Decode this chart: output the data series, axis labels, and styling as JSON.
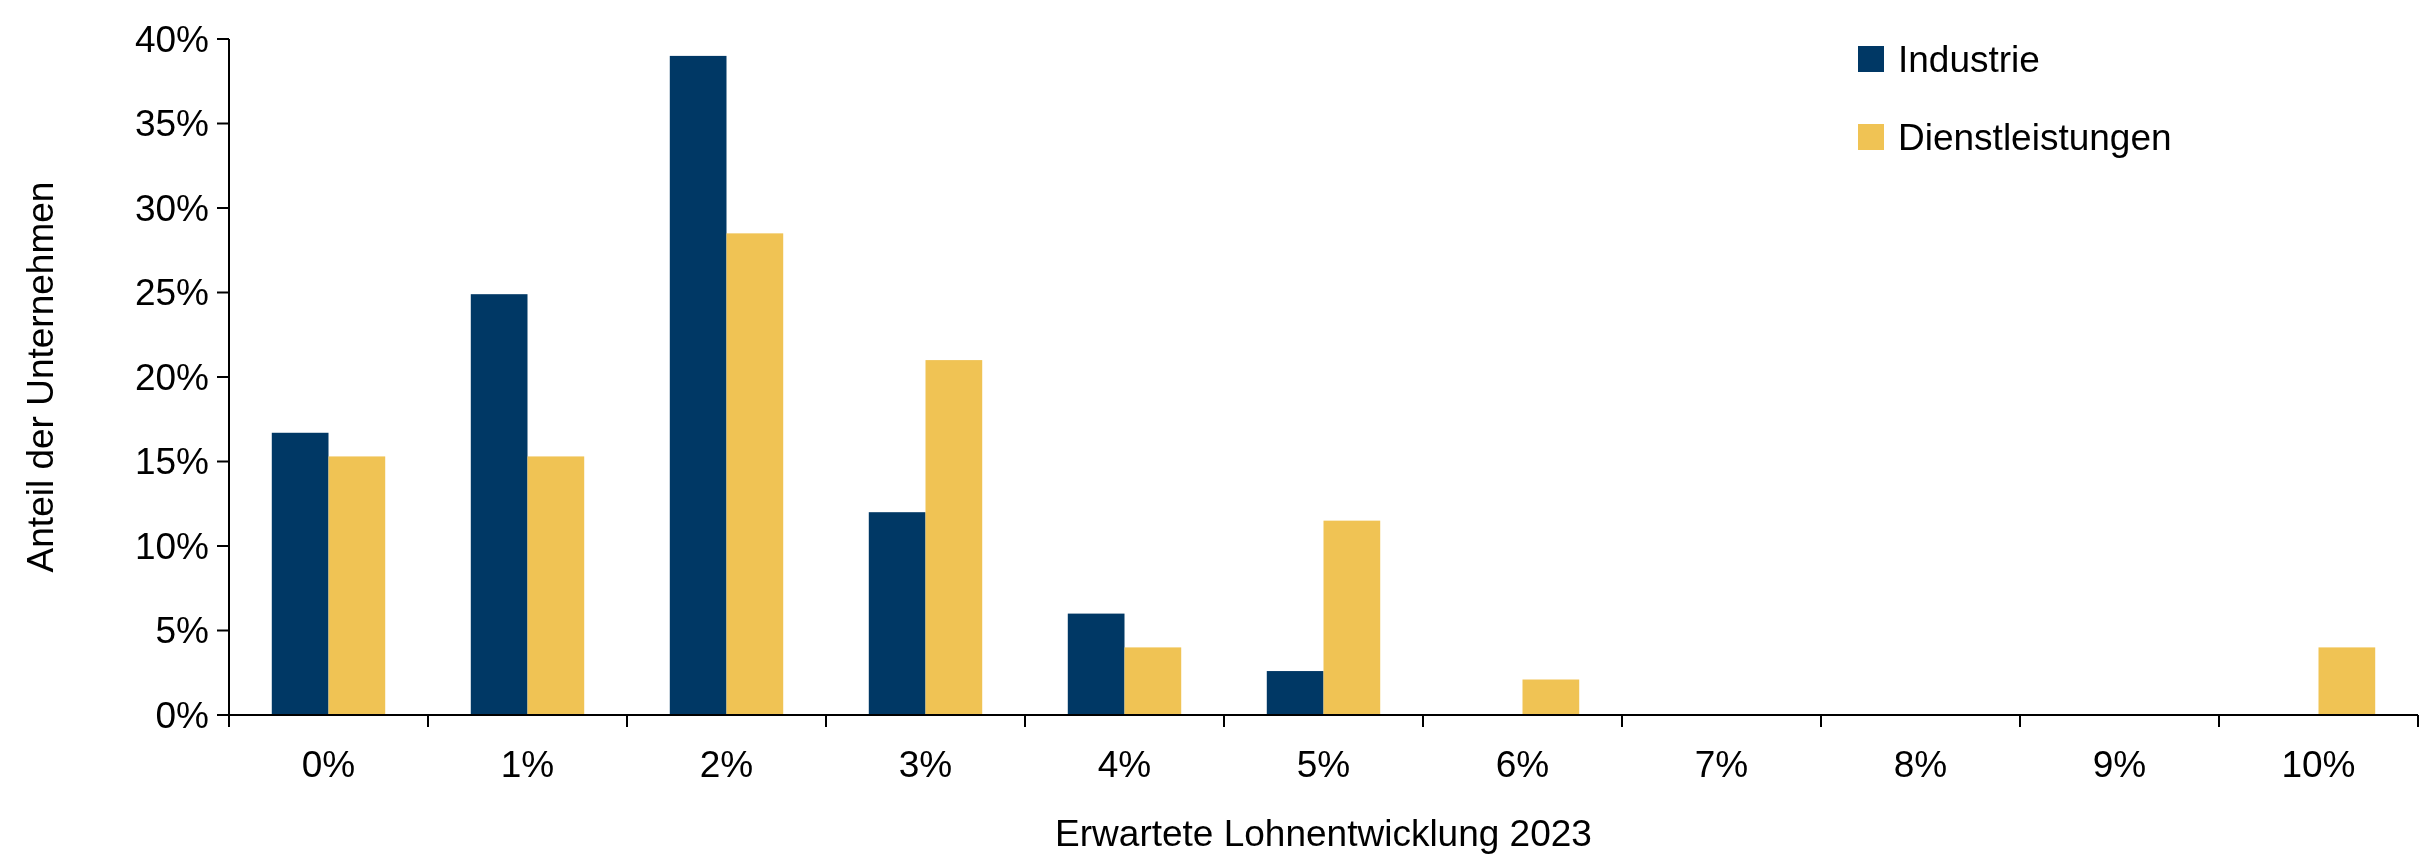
{
  "chart_data": {
    "type": "bar",
    "xlabel": "Erwartete Lohnentwicklung 2023",
    "ylabel": "Anteil der Unternehmen",
    "categories": [
      "0%",
      "1%",
      "2%",
      "3%",
      "4%",
      "5%",
      "6%",
      "7%",
      "8%",
      "9%",
      "10%"
    ],
    "series": [
      {
        "name": "Industrie",
        "color": "#003865",
        "values": [
          16.7,
          24.9,
          39.0,
          12.0,
          6.0,
          2.6,
          0,
          0,
          0,
          0,
          0
        ]
      },
      {
        "name": "Dienstleistungen",
        "color": "#f0c354",
        "values": [
          15.3,
          15.3,
          28.5,
          21.0,
          4.0,
          11.5,
          2.1,
          0,
          0,
          0,
          4.0
        ]
      }
    ],
    "ylim": [
      0,
      40
    ],
    "yticks": [
      {
        "value": 0,
        "label": "0%"
      },
      {
        "value": 5,
        "label": "5%"
      },
      {
        "value": 10,
        "label": "10%"
      },
      {
        "value": 15,
        "label": "15%"
      },
      {
        "value": 20,
        "label": "20%"
      },
      {
        "value": 25,
        "label": "25%"
      },
      {
        "value": 30,
        "label": "30%"
      },
      {
        "value": 35,
        "label": "35%"
      },
      {
        "value": 40,
        "label": "40%"
      }
    ],
    "grid": false,
    "legend": "top right"
  }
}
